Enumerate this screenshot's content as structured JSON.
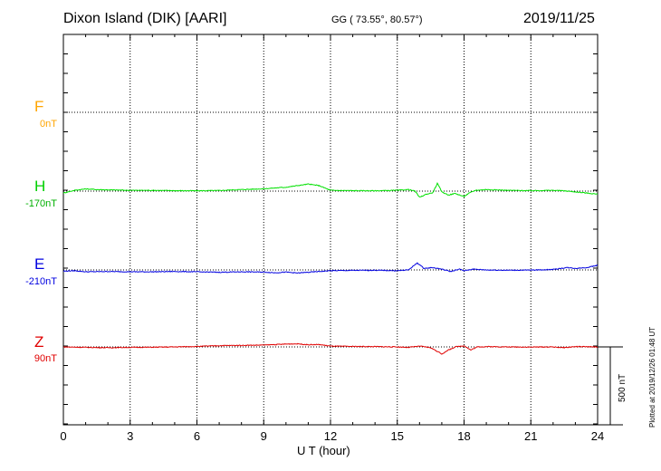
{
  "header": {
    "station": "Dixon Island (DIK)  [AARI]",
    "coords": "GG ( 73.55°,  80.57°)",
    "date": "2019/11/25"
  },
  "footer": {
    "plotted": "Plotted at 2019/12/26 01:48 UT",
    "scale": "500 nT"
  },
  "chart_data": {
    "type": "line",
    "xlabel": "U T (hour)",
    "xlim": [
      0,
      24
    ],
    "xticks": [
      0,
      3,
      6,
      9,
      12,
      15,
      18,
      21,
      24
    ],
    "grid": true,
    "scale_bar_nT": 500,
    "series": [
      {
        "name": "F",
        "baseline_label": "0nT",
        "color": "#ffa500",
        "values": []
      },
      {
        "name": "H",
        "baseline_label": "-170nT",
        "color": "#00e000",
        "x": [
          0,
          0.5,
          1,
          1.5,
          2,
          3,
          4,
          5,
          6,
          7,
          8,
          9,
          9.5,
          10,
          10.5,
          11,
          11.5,
          12,
          13,
          14,
          15,
          15.5,
          15.8,
          16,
          16.3,
          16.6,
          16.8,
          17,
          17.3,
          17.6,
          18,
          18.2,
          18.5,
          19,
          20,
          21,
          22,
          22.5,
          23,
          23.5,
          24
        ],
        "values": [
          -12,
          5,
          14,
          10,
          8,
          5,
          5,
          3,
          2,
          4,
          10,
          15,
          20,
          25,
          35,
          45,
          35,
          5,
          3,
          2,
          5,
          10,
          0,
          -40,
          -20,
          -10,
          50,
          -5,
          -25,
          -15,
          -35,
          -15,
          5,
          10,
          5,
          3,
          5,
          2,
          -5,
          -12,
          -20
        ]
      },
      {
        "name": "E",
        "baseline_label": "-210nT",
        "color": "#0000e0",
        "x": [
          0,
          0.5,
          1,
          2,
          3,
          4,
          5,
          6,
          7,
          8,
          9,
          9.5,
          10,
          10.5,
          11,
          11.5,
          12,
          13,
          14,
          15,
          15.5,
          15.9,
          16.2,
          16.6,
          17,
          17.4,
          17.8,
          18,
          18.4,
          19,
          20,
          21,
          22,
          22.6,
          23,
          23.5,
          24
        ],
        "values": [
          -8,
          -5,
          -12,
          -10,
          -12,
          -12,
          -10,
          -12,
          -15,
          -12,
          -14,
          -18,
          -14,
          -20,
          -15,
          -10,
          -5,
          -3,
          -2,
          -5,
          0,
          45,
          10,
          15,
          5,
          -10,
          5,
          -5,
          5,
          0,
          -2,
          -1,
          3,
          15,
          10,
          15,
          30
        ]
      },
      {
        "name": "Z",
        "baseline_label": "90nT",
        "color": "#e00000",
        "x": [
          0,
          1,
          2,
          3,
          4,
          5,
          6,
          7,
          8,
          9,
          10,
          10.5,
          11,
          11.5,
          12,
          13,
          14,
          15,
          15.5,
          16,
          16.5,
          17,
          17.3,
          17.6,
          18,
          18.3,
          18.6,
          19,
          20,
          21,
          22,
          22.5,
          23,
          24
        ],
        "values": [
          0,
          -3,
          -5,
          -3,
          -2,
          0,
          3,
          8,
          10,
          12,
          18,
          20,
          14,
          15,
          5,
          3,
          2,
          0,
          -3,
          5,
          -5,
          -45,
          -20,
          0,
          8,
          -20,
          0,
          2,
          0,
          -1,
          0,
          -5,
          2,
          0
        ]
      }
    ]
  }
}
